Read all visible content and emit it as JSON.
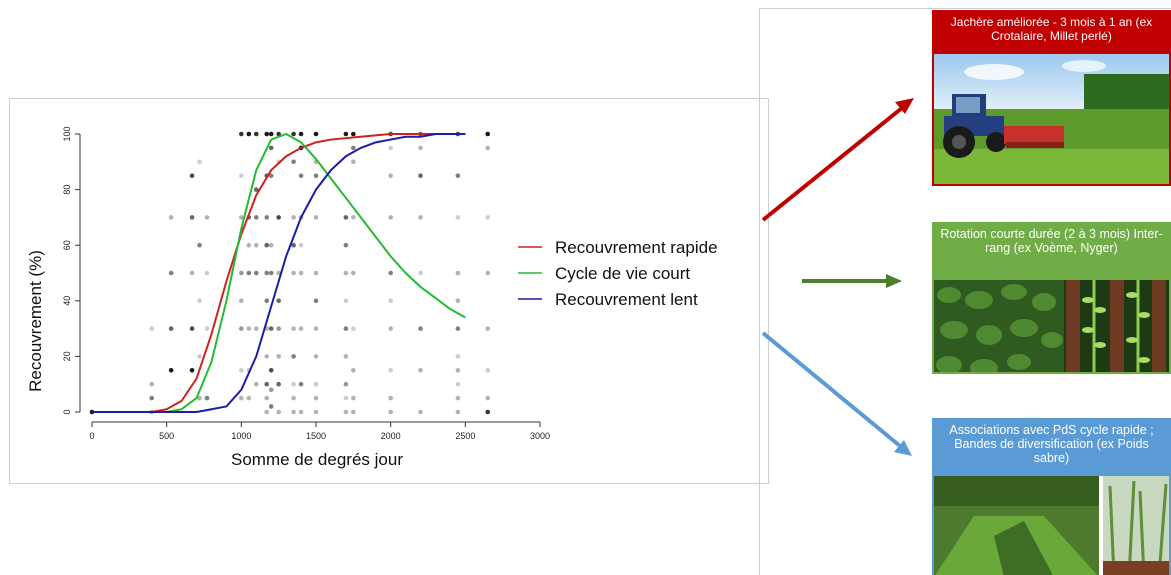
{
  "chart_data": {
    "type": "scatter",
    "title": "",
    "xlabel": "Somme de degrés jour",
    "ylabel": "Recouvrement (%)",
    "xlim": [
      0,
      3000
    ],
    "ylim": [
      0,
      100
    ],
    "x_ticks": [
      0,
      500,
      1000,
      1500,
      2000,
      2500,
      3000
    ],
    "y_ticks": [
      0,
      20,
      40,
      60,
      80,
      100
    ],
    "grid": false,
    "legend_position": "right",
    "series": [
      {
        "name": "Recouvrement rapide",
        "color": "#cc2222",
        "x": [
          0,
          400,
          500,
          600,
          700,
          800,
          900,
          1000,
          1100,
          1200,
          1300,
          1400,
          1500,
          1600,
          1800,
          2000,
          2200,
          2500
        ],
        "y": [
          0,
          0,
          1,
          4,
          12,
          28,
          47,
          64,
          78,
          87,
          92,
          95,
          97,
          98,
          99,
          100,
          100,
          100
        ]
      },
      {
        "name": "Cycle de vie court",
        "color": "#22bb33",
        "x": [
          0,
          500,
          600,
          700,
          800,
          900,
          1000,
          1100,
          1200,
          1300,
          1400,
          1500,
          1600,
          1700,
          1800,
          1900,
          2000,
          2100,
          2200,
          2300,
          2400,
          2500
        ],
        "y": [
          0,
          0,
          1,
          5,
          18,
          40,
          66,
          87,
          98,
          100,
          97,
          91,
          84,
          77,
          70,
          63,
          56,
          50,
          45,
          41,
          37,
          34
        ]
      },
      {
        "name": "Recouvrement lent",
        "color": "#1c1caa",
        "x": [
          0,
          700,
          800,
          900,
          1000,
          1100,
          1200,
          1300,
          1400,
          1500,
          1600,
          1700,
          1800,
          1900,
          2000,
          2100,
          2200,
          2300,
          2400,
          2500
        ],
        "y": [
          0,
          0,
          1,
          2,
          8,
          20,
          38,
          56,
          70,
          80,
          87,
          92,
          95,
          97,
          98,
          99,
          99,
          100,
          100,
          100
        ]
      }
    ],
    "observations": {
      "x": [
        0,
        400,
        400,
        400,
        400,
        530,
        530,
        530,
        530,
        670,
        670,
        670,
        670,
        670,
        720,
        720,
        720,
        720,
        720,
        770,
        770,
        770,
        770,
        1000,
        1000,
        1000,
        1000,
        1000,
        1000,
        1000,
        1000,
        1050,
        1050,
        1050,
        1050,
        1050,
        1050,
        1050,
        1100,
        1100,
        1100,
        1100,
        1100,
        1100,
        1100,
        1170,
        1170,
        1170,
        1170,
        1170,
        1170,
        1170,
        1170,
        1170,
        1170,
        1170,
        1200,
        1200,
        1200,
        1200,
        1200,
        1200,
        1200,
        1200,
        1200,
        1250,
        1250,
        1250,
        1250,
        1250,
        1250,
        1250,
        1250,
        1250,
        1350,
        1350,
        1350,
        1350,
        1350,
        1350,
        1350,
        1350,
        1350,
        1350,
        1400,
        1400,
        1400,
        1400,
        1400,
        1400,
        1400,
        1400,
        1400,
        1500,
        1500,
        1500,
        1500,
        1500,
        1500,
        1500,
        1500,
        1500,
        1500,
        1500,
        1700,
        1700,
        1700,
        1700,
        1700,
        1700,
        1700,
        1700,
        1700,
        1700,
        1750,
        1750,
        1750,
        1750,
        1750,
        1750,
        1750,
        1750,
        1750,
        2000,
        2000,
        2000,
        2000,
        2000,
        2000,
        2000,
        2000,
        2000,
        2000,
        2200,
        2200,
        2200,
        2200,
        2200,
        2200,
        2200,
        2200,
        2450,
        2450,
        2450,
        2450,
        2450,
        2450,
        2450,
        2450,
        2450,
        2450,
        2450,
        2650,
        2650,
        2650,
        2650,
        2650,
        2650,
        2650,
        2650
      ],
      "y": [
        0,
        0,
        5,
        10,
        30,
        15,
        30,
        50,
        70,
        15,
        30,
        50,
        70,
        85,
        5,
        20,
        40,
        60,
        90,
        5,
        30,
        50,
        70,
        5,
        15,
        30,
        40,
        50,
        70,
        85,
        100,
        5,
        15,
        30,
        50,
        60,
        70,
        100,
        10,
        30,
        50,
        60,
        70,
        80,
        100,
        0,
        5,
        10,
        20,
        30,
        40,
        50,
        60,
        70,
        85,
        100,
        2,
        8,
        15,
        30,
        50,
        60,
        85,
        95,
        100,
        0,
        10,
        20,
        30,
        40,
        50,
        70,
        90,
        100,
        0,
        5,
        10,
        20,
        30,
        50,
        60,
        70,
        90,
        100,
        0,
        10,
        30,
        50,
        60,
        70,
        85,
        95,
        100,
        0,
        5,
        10,
        20,
        30,
        40,
        50,
        70,
        85,
        90,
        100,
        0,
        5,
        10,
        20,
        30,
        40,
        50,
        60,
        70,
        100,
        0,
        5,
        15,
        30,
        50,
        70,
        90,
        95,
        100,
        0,
        5,
        15,
        30,
        40,
        50,
        70,
        85,
        95,
        100,
        0,
        15,
        30,
        50,
        70,
        85,
        95,
        100,
        0,
        5,
        10,
        15,
        20,
        30,
        40,
        50,
        70,
        85,
        100,
        0,
        5,
        15,
        30,
        50,
        70,
        95,
        100
      ],
      "shade": [
        0.9,
        0.3,
        0.5,
        0.3,
        0.2,
        0.9,
        0.6,
        0.5,
        0.3,
        0.9,
        0.7,
        0.3,
        0.6,
        0.7,
        0.3,
        0.2,
        0.2,
        0.5,
        0.2,
        0.5,
        0.2,
        0.2,
        0.3,
        0.3,
        0.2,
        0.4,
        0.3,
        0.4,
        0.3,
        0.2,
        0.8,
        0.3,
        0.2,
        0.3,
        0.5,
        0.3,
        0.6,
        0.9,
        0.3,
        0.3,
        0.5,
        0.3,
        0.5,
        0.6,
        0.8,
        0.3,
        0.3,
        0.6,
        0.3,
        0.3,
        0.5,
        0.5,
        0.6,
        0.5,
        0.6,
        0.9,
        0.5,
        0.4,
        0.7,
        0.6,
        0.5,
        0.3,
        0.5,
        0.6,
        0.9,
        0.3,
        0.6,
        0.3,
        0.4,
        0.6,
        0.3,
        0.7,
        0.2,
        0.8,
        0.3,
        0.3,
        0.2,
        0.5,
        0.3,
        0.3,
        0.6,
        0.3,
        0.5,
        0.8,
        0.3,
        0.5,
        0.3,
        0.3,
        0.2,
        0.3,
        0.5,
        0.9,
        0.9,
        0.3,
        0.3,
        0.2,
        0.3,
        0.3,
        0.5,
        0.3,
        0.3,
        0.5,
        0.3,
        0.9,
        0.3,
        0.2,
        0.4,
        0.3,
        0.5,
        0.2,
        0.3,
        0.5,
        0.6,
        0.9,
        0.3,
        0.3,
        0.3,
        0.2,
        0.3,
        0.3,
        0.3,
        0.5,
        0.9,
        0.3,
        0.3,
        0.2,
        0.3,
        0.2,
        0.5,
        0.3,
        0.3,
        0.2,
        0.7,
        0.3,
        0.3,
        0.5,
        0.2,
        0.3,
        0.6,
        0.3,
        0.6,
        0.3,
        0.3,
        0.2,
        0.3,
        0.2,
        0.5,
        0.3,
        0.3,
        0.2,
        0.5,
        0.7,
        0.8,
        0.3,
        0.2,
        0.3,
        0.3,
        0.2,
        0.3,
        0.9,
        0.9
      ]
    }
  },
  "practices": [
    {
      "title": "Jachère améliorée - 3 mois à 1 an (ex Crotalaire, Millet perlé)",
      "header_color": "#c00000",
      "border_color": "#c00000",
      "arrow_color": "#c00000"
    },
    {
      "title": "Rotation courte durée (2 à 3 mois) Inter-rang (ex Voème, Nyger)",
      "header_color": "#70ad47",
      "border_color": "#70ad47",
      "arrow_color": "#4b7f2c"
    },
    {
      "title": "Associations avec PdS cycle rapide ; Bandes de diversification (ex Poids sabre)",
      "header_color": "#5b9bd5",
      "border_color": "#5b9bd5",
      "arrow_color": "#5b9bd5"
    }
  ],
  "icons": {
    "tractor_photo": "tractor-mowing-field-photo",
    "rows_photo": "crop-rows-photo",
    "strip_photo": "diversification-strip-photo"
  }
}
